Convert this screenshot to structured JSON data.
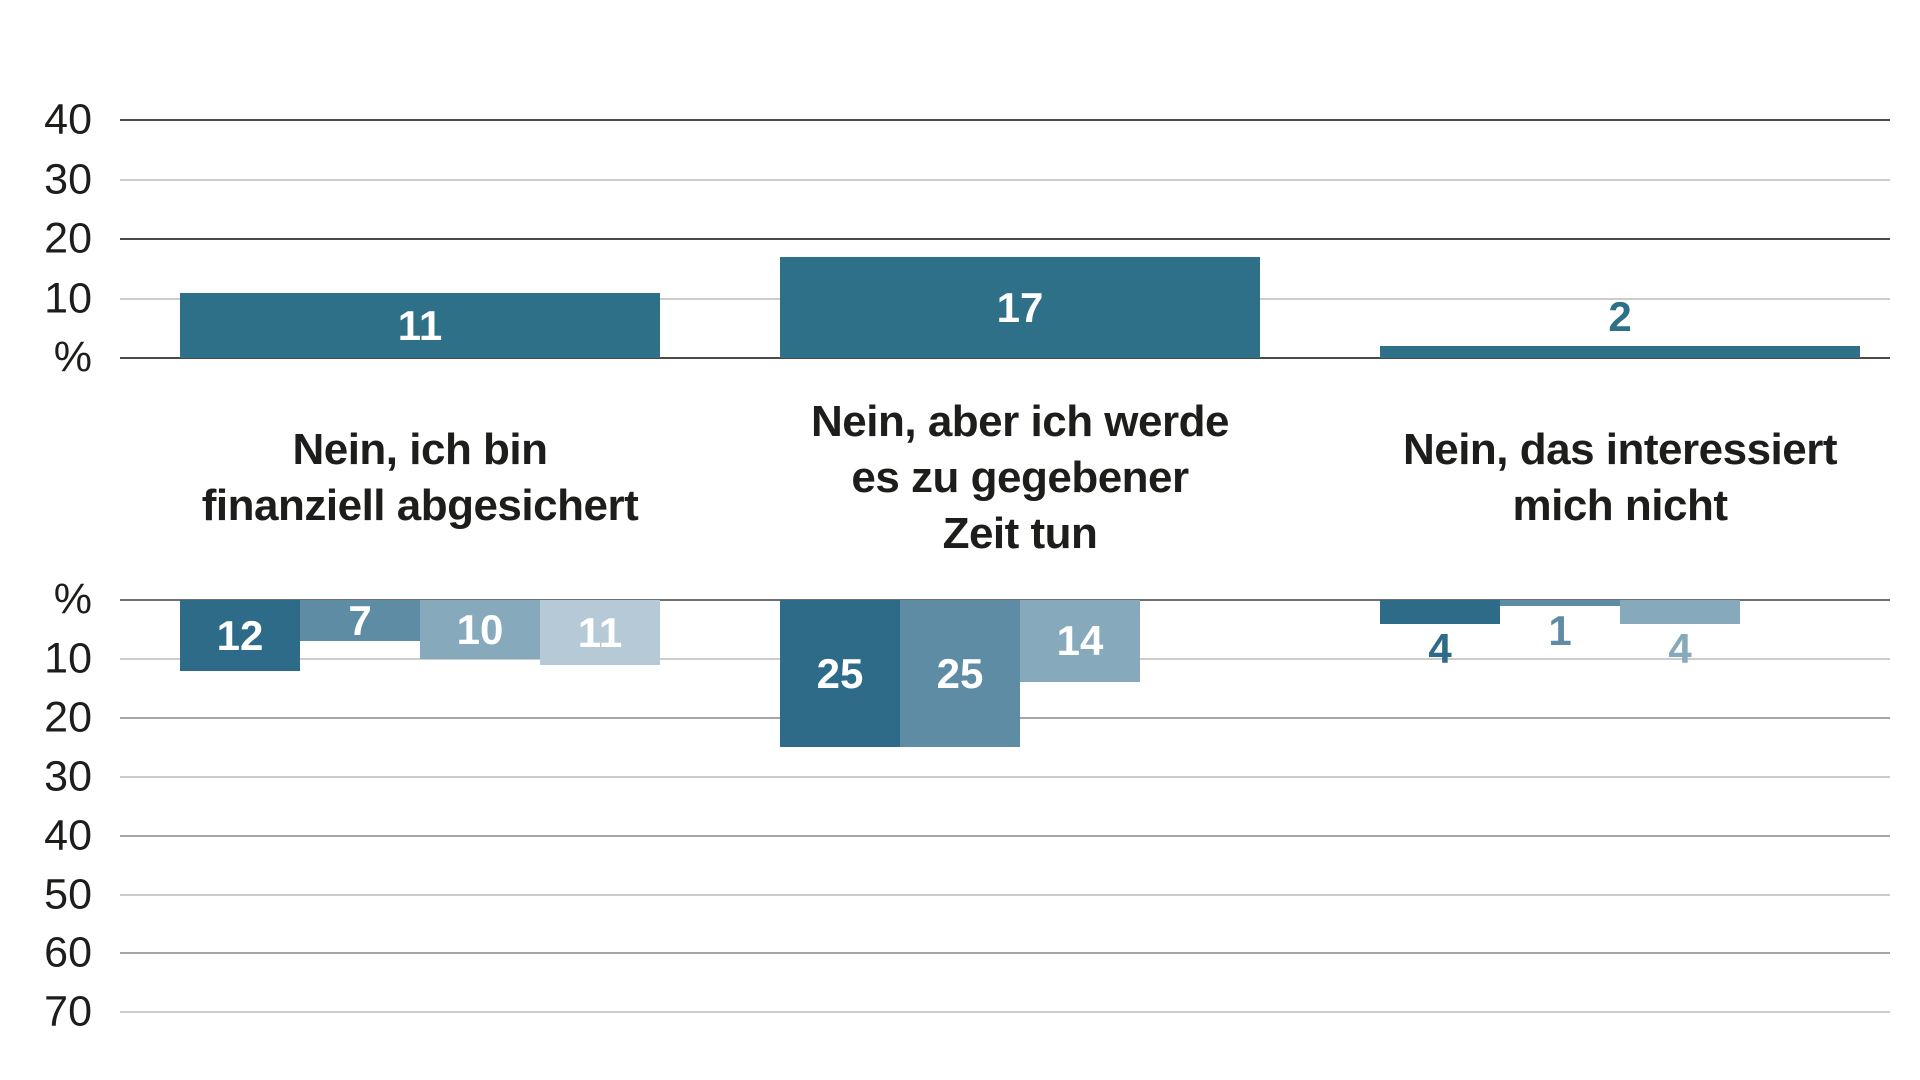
{
  "chart_data": {
    "type": "bar",
    "orientation": "vertical",
    "unit": "%",
    "background": "#ffffff",
    "text_color": "#1d1d1b",
    "grid": {
      "major_color": "#4a4a4a",
      "mid_color": "#a6a6a6",
      "minor_color": "#cccccc",
      "baseline_bottom_color": "#6f6f6f"
    },
    "categories": [
      {
        "label": "Nein, ich bin finanziell abgesichert",
        "lines": [
          "Nein, ich bin",
          "finanziell abgesichert"
        ]
      },
      {
        "label": "Nein, aber ich werde es zu gegebener Zeit tun",
        "lines": [
          "Nein, aber ich werde",
          "es zu gegebener",
          "Zeit tun"
        ]
      },
      {
        "label": "Nein, das interessiert mich nicht",
        "lines": [
          "Nein, das interessiert",
          "mich nicht"
        ]
      }
    ],
    "top_chart": {
      "axis_unit_label": "%",
      "axis_ticks": [
        40,
        30,
        20,
        10
      ],
      "ylim": [
        0,
        45
      ],
      "grid": true,
      "bar_color": "#2f7089",
      "value_label_color_inside": "#ffffff",
      "values": [
        11,
        17,
        2
      ]
    },
    "bottom_chart": {
      "axis_unit_label": "%",
      "axis_ticks": [
        10,
        20,
        30,
        40,
        50,
        60,
        70
      ],
      "ylim": [
        0,
        70
      ],
      "direction": "downward",
      "grid": true,
      "value_label_color_inside": "#ffffff",
      "series": [
        {
          "name": "series-1-darkest",
          "color": "#2d6b88",
          "values": [
            12,
            25,
            4
          ]
        },
        {
          "name": "series-2",
          "color": "#5d8ca4",
          "values": [
            7,
            25,
            1
          ]
        },
        {
          "name": "series-3",
          "color": "#87a9bc",
          "values": [
            10,
            14,
            4
          ]
        },
        {
          "name": "series-4-lightest",
          "color": "#b5c9d6",
          "values": [
            11,
            0,
            0
          ]
        }
      ],
      "legend": "none"
    }
  }
}
